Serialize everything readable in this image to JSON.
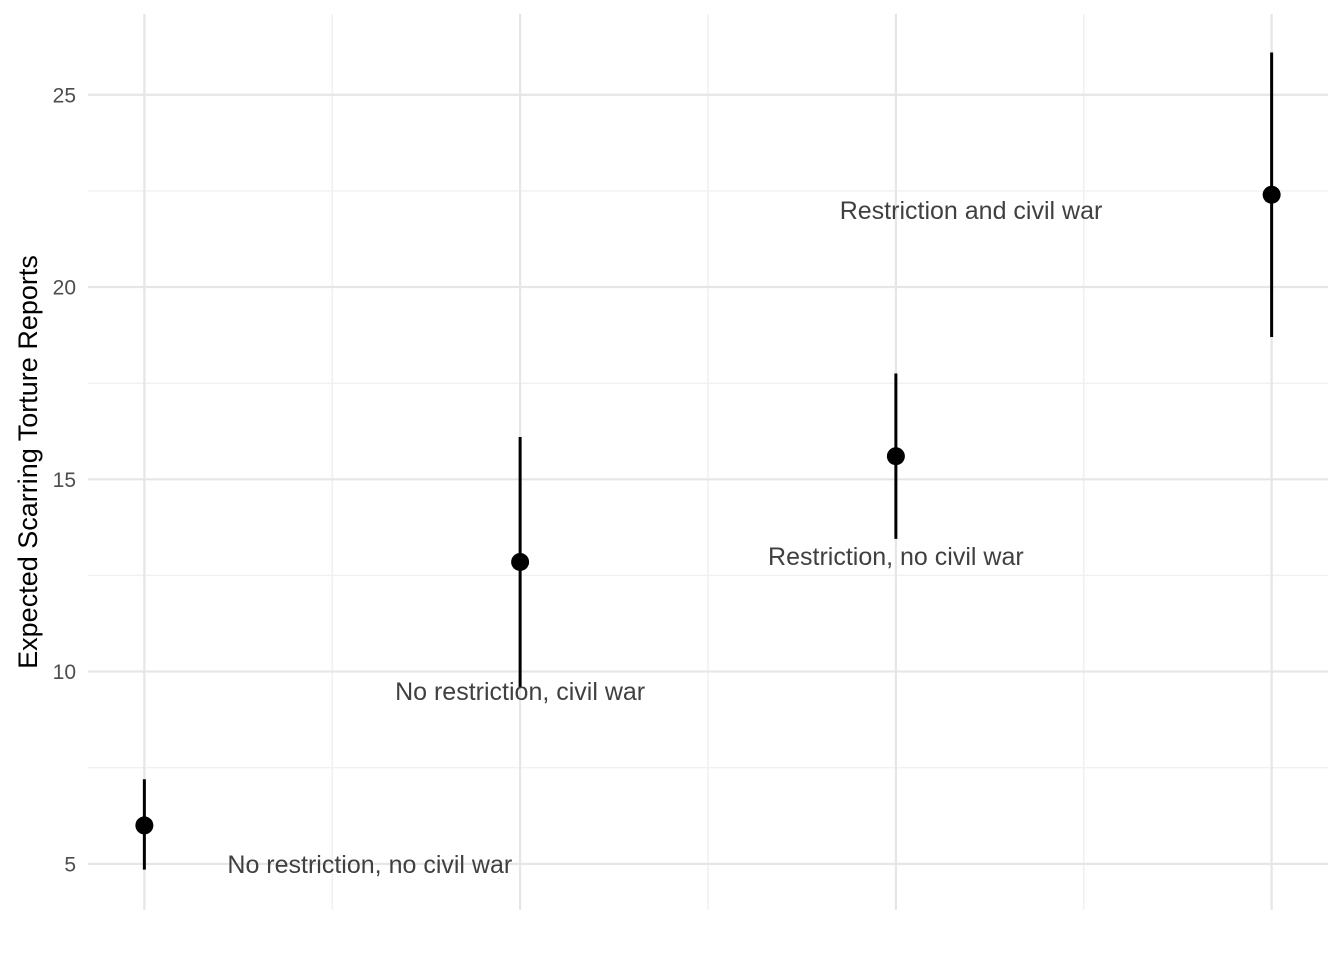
{
  "chart_data": {
    "type": "scatter",
    "title": "",
    "xlabel": "",
    "ylabel": "Expected Scarring Torture Reports",
    "ylim": [
      3.8,
      27.1
    ],
    "yticks": [
      5,
      10,
      15,
      20,
      25
    ],
    "ytick_labels": [
      "5",
      "10",
      "15",
      "20",
      "25"
    ],
    "y_minor_ticks": [
      7.5,
      12.5,
      17.5,
      22.5
    ],
    "xlim": [
      0.85,
      4.15
    ],
    "x_major_grid": [
      1,
      2,
      3,
      4
    ],
    "x_minor_grid": [
      1.5,
      2.5,
      3.5
    ],
    "grid": true,
    "legend": "none",
    "points": [
      {
        "x": 1,
        "y": 6.0,
        "lower": 4.85,
        "upper": 7.2
      },
      {
        "x": 2,
        "y": 12.85,
        "lower": 9.6,
        "upper": 16.1
      },
      {
        "x": 3,
        "y": 15.6,
        "lower": 13.45,
        "upper": 17.75
      },
      {
        "x": 4,
        "y": 22.4,
        "lower": 18.7,
        "upper": 26.1
      }
    ],
    "annotations": [
      {
        "text": "No restriction, no civil war",
        "x": 1.6,
        "y": 5.0
      },
      {
        "text": "No restriction, civil war",
        "x": 2.0,
        "y": 9.5
      },
      {
        "text": "Restriction, no civil war",
        "x": 3.0,
        "y": 13.0
      },
      {
        "text": "Restriction and civil war",
        "x": 3.2,
        "y": 22.0
      }
    ]
  }
}
